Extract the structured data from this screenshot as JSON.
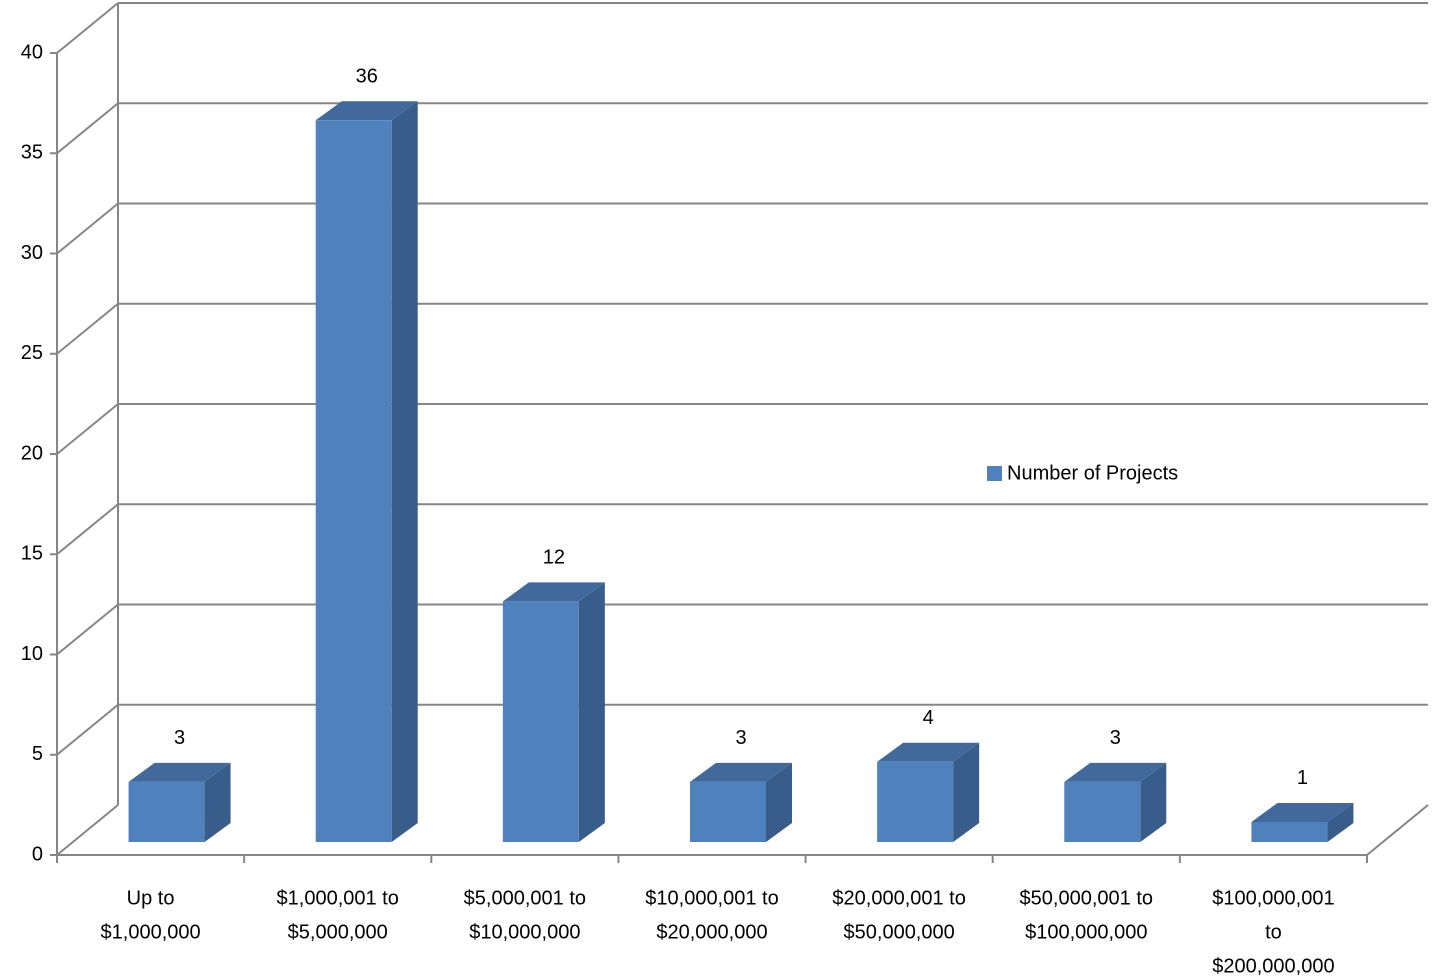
{
  "chart_data": {
    "type": "bar3d",
    "categories": [
      [
        "Up to",
        "$1,000,000"
      ],
      [
        "$1,000,001 to",
        "$5,000,000"
      ],
      [
        "$5,000,001 to",
        "$10,000,000"
      ],
      [
        "$10,000,001 to",
        "$20,000,000"
      ],
      [
        "$20,000,001 to",
        "$50,000,000"
      ],
      [
        "$50,000,001 to",
        "$100,000,000"
      ],
      [
        "$100,000,001",
        "to",
        "$200,000,000"
      ]
    ],
    "series": [
      {
        "name": "Number of Projects",
        "color": "#4f81bd",
        "values": [
          3,
          36,
          12,
          3,
          4,
          3,
          1
        ]
      }
    ],
    "ylim": [
      0,
      40
    ],
    "yticks": [
      0,
      5,
      10,
      15,
      20,
      25,
      30,
      35,
      40
    ],
    "grid": true,
    "legend": "right"
  }
}
